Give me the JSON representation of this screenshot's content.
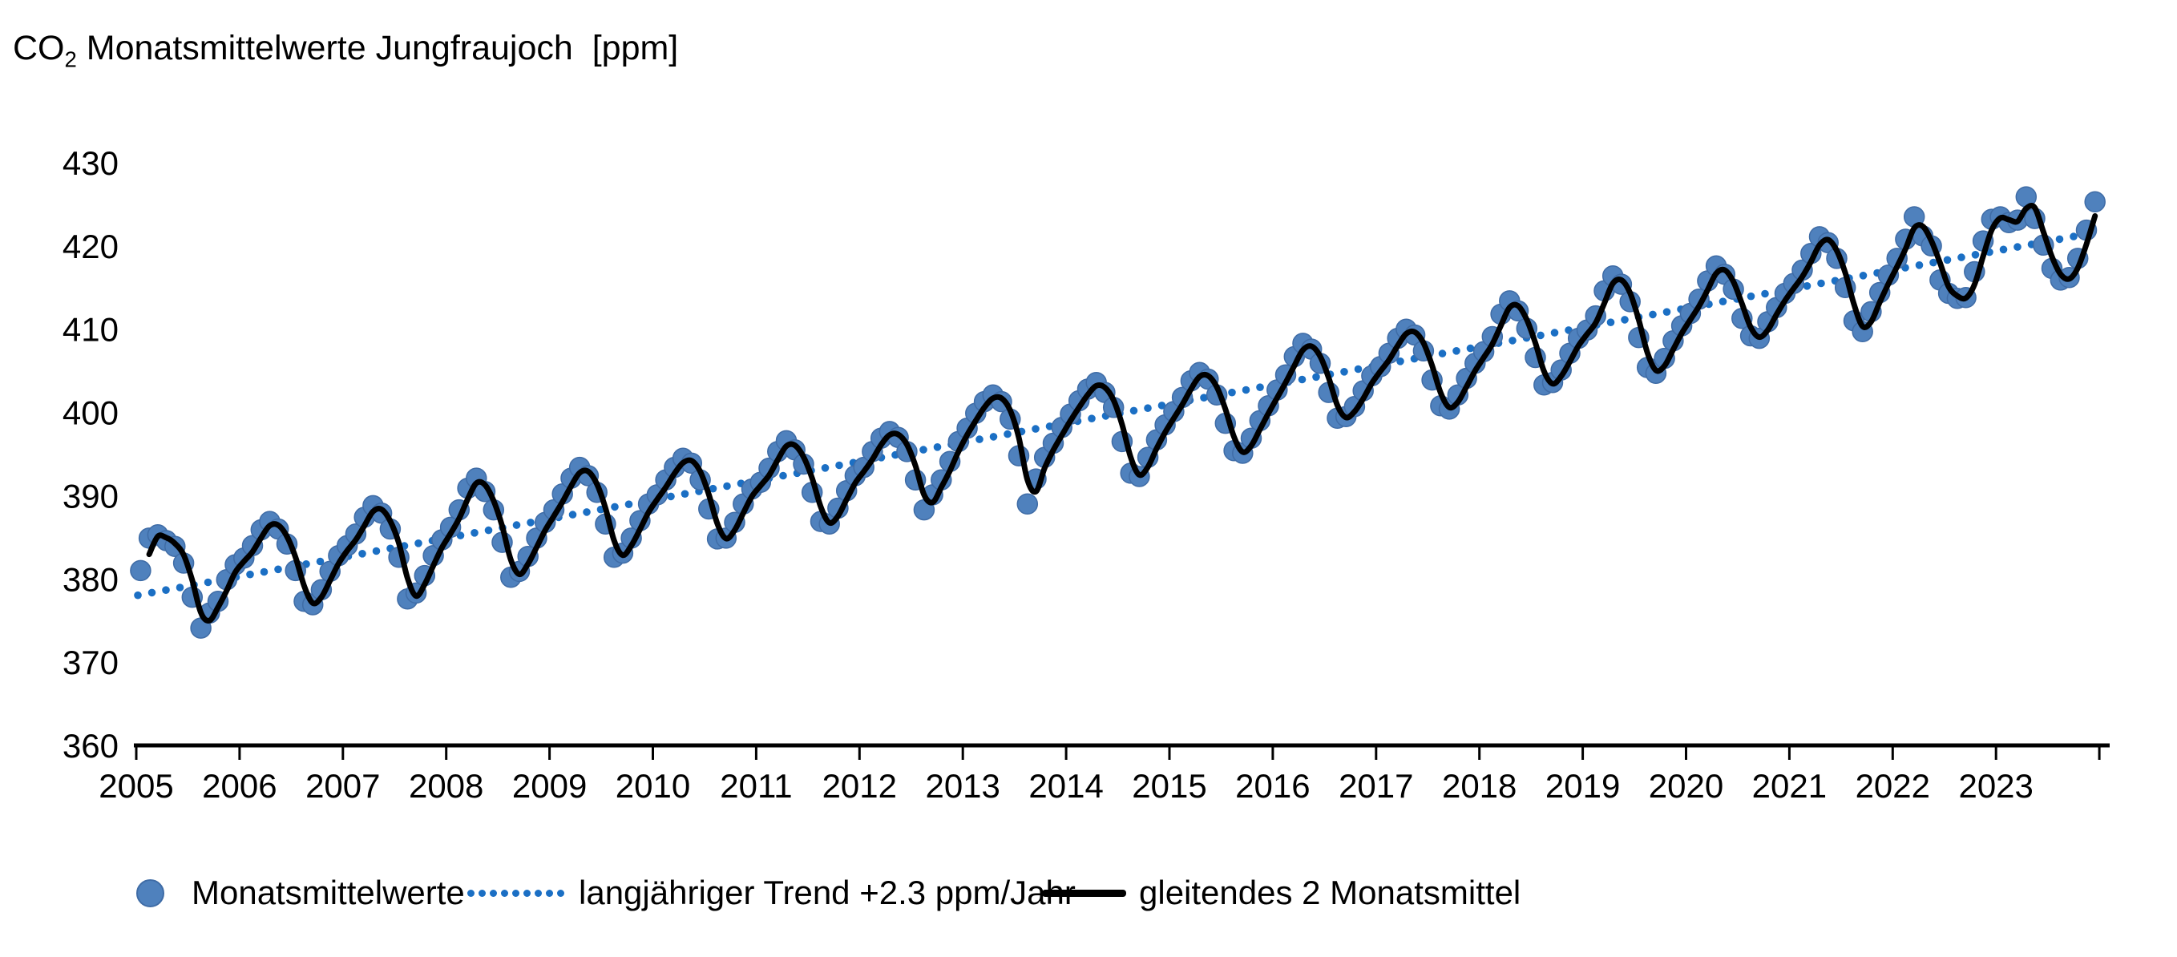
{
  "title": {
    "pre": "CO",
    "sub": "2",
    "post": " Monatsmittelwerte Jungfraujoch  [ppm]"
  },
  "colors": {
    "dot_fill": "#4f81bd",
    "dot_stroke": "#3f6ca6",
    "trend_blue": "#1b6fc4",
    "line_black": "#000000",
    "axis_black": "#000000"
  },
  "legend": {
    "items": [
      {
        "label": "Monatsmittelwerte",
        "swatch": "dot"
      },
      {
        "label": "langjähriger Trend +2.3 ppm/Jahr",
        "swatch": "dotted-line"
      },
      {
        "label": "gleitendes 2 Monatsmittel",
        "swatch": "solid-line"
      }
    ]
  },
  "chart_data": {
    "type": "scatter",
    "title": "CO2 Monatsmittelwerte Jungfraujoch [ppm]",
    "ylabel": "ppm",
    "ylim": [
      360,
      430
    ],
    "y_ticks": [
      360,
      370,
      380,
      390,
      400,
      410,
      420,
      430
    ],
    "x_years": [
      "2005",
      "2006",
      "2007",
      "2008",
      "2009",
      "2010",
      "2011",
      "2012",
      "2013",
      "2014",
      "2015",
      "2016",
      "2017",
      "2018",
      "2019",
      "2020",
      "2021",
      "2022",
      "2023"
    ],
    "x_range_years": [
      2005,
      2024
    ],
    "grid": false,
    "legend_position": "bottom",
    "start": {
      "year": 2005,
      "month": 1
    },
    "months_per_year": 12,
    "n_points": 228,
    "series": [
      {
        "name": "Monatsmittelwerte",
        "type": "scatter",
        "color": "#4f81bd",
        "values": [
          381.0,
          384.9,
          385.3,
          384.6,
          383.9,
          381.9,
          377.8,
          374.1,
          375.9,
          377.3,
          379.9,
          381.7,
          382.5,
          384.0,
          385.9,
          386.9,
          386.0,
          384.2,
          381.0,
          377.3,
          376.9,
          378.7,
          380.9,
          382.8,
          384.0,
          385.4,
          387.4,
          388.8,
          387.9,
          386.0,
          382.6,
          377.6,
          378.3,
          380.4,
          382.8,
          384.7,
          386.2,
          388.3,
          390.9,
          392.1,
          390.5,
          388.3,
          384.4,
          380.2,
          380.9,
          382.7,
          384.9,
          386.8,
          388.3,
          390.2,
          392.1,
          393.4,
          392.4,
          390.4,
          386.6,
          382.6,
          383.1,
          384.9,
          387.0,
          389.0,
          390.1,
          391.9,
          393.4,
          394.5,
          393.9,
          391.9,
          388.4,
          384.8,
          384.9,
          386.8,
          389.0,
          390.8,
          391.6,
          393.3,
          395.3,
          396.6,
          395.5,
          393.8,
          390.4,
          386.9,
          386.6,
          388.5,
          390.6,
          392.4,
          393.4,
          395.3,
          396.9,
          397.7,
          397.0,
          395.3,
          391.9,
          388.3,
          390.1,
          391.9,
          394.1,
          396.5,
          398.1,
          399.9,
          401.3,
          402.1,
          401.3,
          399.2,
          394.8,
          389.0,
          392.0,
          394.6,
          396.3,
          398.2,
          399.8,
          401.4,
          402.8,
          403.6,
          402.4,
          400.6,
          396.5,
          392.7,
          392.3,
          394.6,
          396.7,
          398.5,
          400.1,
          401.8,
          403.8,
          404.8,
          404.0,
          402.1,
          398.7,
          395.4,
          395.1,
          396.9,
          399.0,
          400.8,
          402.7,
          404.5,
          406.7,
          408.3,
          407.6,
          405.9,
          402.4,
          399.3,
          399.5,
          400.7,
          402.6,
          404.4,
          405.5,
          407.1,
          408.9,
          410.0,
          409.3,
          407.4,
          403.9,
          400.8,
          400.4,
          402.1,
          404.1,
          405.9,
          407.3,
          409.1,
          411.8,
          413.4,
          412.2,
          410.1,
          406.6,
          403.3,
          403.6,
          405.1,
          407.1,
          408.9,
          409.9,
          411.6,
          414.6,
          416.4,
          415.4,
          413.3,
          409.0,
          405.4,
          404.7,
          406.5,
          408.6,
          410.4,
          411.9,
          413.6,
          415.8,
          417.6,
          416.6,
          414.8,
          411.3,
          409.2,
          408.9,
          410.9,
          412.6,
          414.3,
          415.5,
          417.1,
          419.1,
          421.1,
          420.4,
          418.5,
          415.0,
          411.0,
          409.7,
          412.1,
          414.4,
          416.5,
          418.5,
          420.8,
          423.5,
          421.2,
          420.0,
          415.9,
          414.3,
          413.7,
          413.8,
          416.9,
          420.6,
          423.2,
          423.5,
          422.8,
          423.1,
          425.9,
          423.3,
          420.1,
          417.3,
          415.9,
          416.2,
          418.5,
          421.9,
          425.3
        ]
      },
      {
        "name": "langjähriger Trend +2.3 ppm/Jahr",
        "type": "dotted_trend_line",
        "color": "#1b6fc4",
        "start_year": 2005,
        "start_value": 378.0,
        "slope_ppm_per_year": 2.3,
        "end_year": 2024,
        "end_value": 421.7
      },
      {
        "name": "gleitendes 2 Monatsmittel",
        "type": "line_moving_average_2_months",
        "color": "#000000",
        "derived_from": "Monatsmittelwerte"
      }
    ]
  }
}
